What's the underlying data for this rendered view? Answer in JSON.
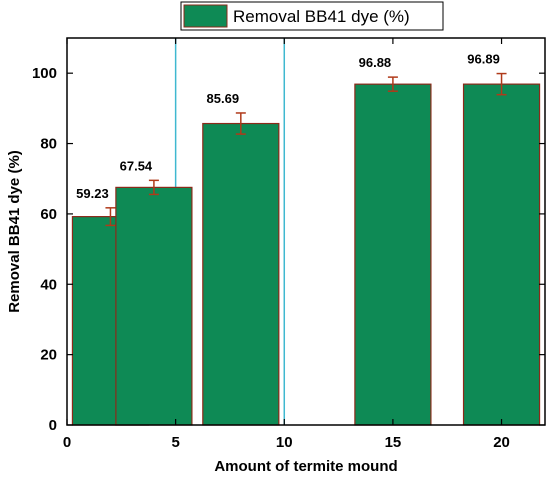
{
  "chart_data": {
    "type": "bar",
    "xlabel": "Amount of termite mound",
    "ylabel": "Removal BB41 dye (%)",
    "legend": {
      "label": "Removal BB41 dye (%)",
      "placement": "top-center"
    },
    "x": [
      2,
      4,
      8,
      15,
      20
    ],
    "values": [
      59.23,
      67.54,
      85.69,
      96.88,
      96.89
    ],
    "data_labels": [
      "59.23",
      "67.54",
      "85.69",
      "96.88",
      "96.89"
    ],
    "errors": [
      2.5,
      2.0,
      3.0,
      2.0,
      3.0
    ],
    "bar_width": 3.5,
    "xlim": [
      0,
      22
    ],
    "ylim": [
      0,
      110
    ],
    "xticks": [
      "0",
      "5",
      "10",
      "15",
      "20"
    ],
    "yticks": [
      "0",
      "20",
      "40",
      "60",
      "80",
      "100"
    ],
    "grid": false,
    "reference_lines_x": [
      5,
      10
    ],
    "colors": {
      "bar_fill": "#0e8a55",
      "bar_edge": "#8b2a1a",
      "error_bar": "#b03a1a",
      "reference_line": "#3fb8d0"
    }
  }
}
